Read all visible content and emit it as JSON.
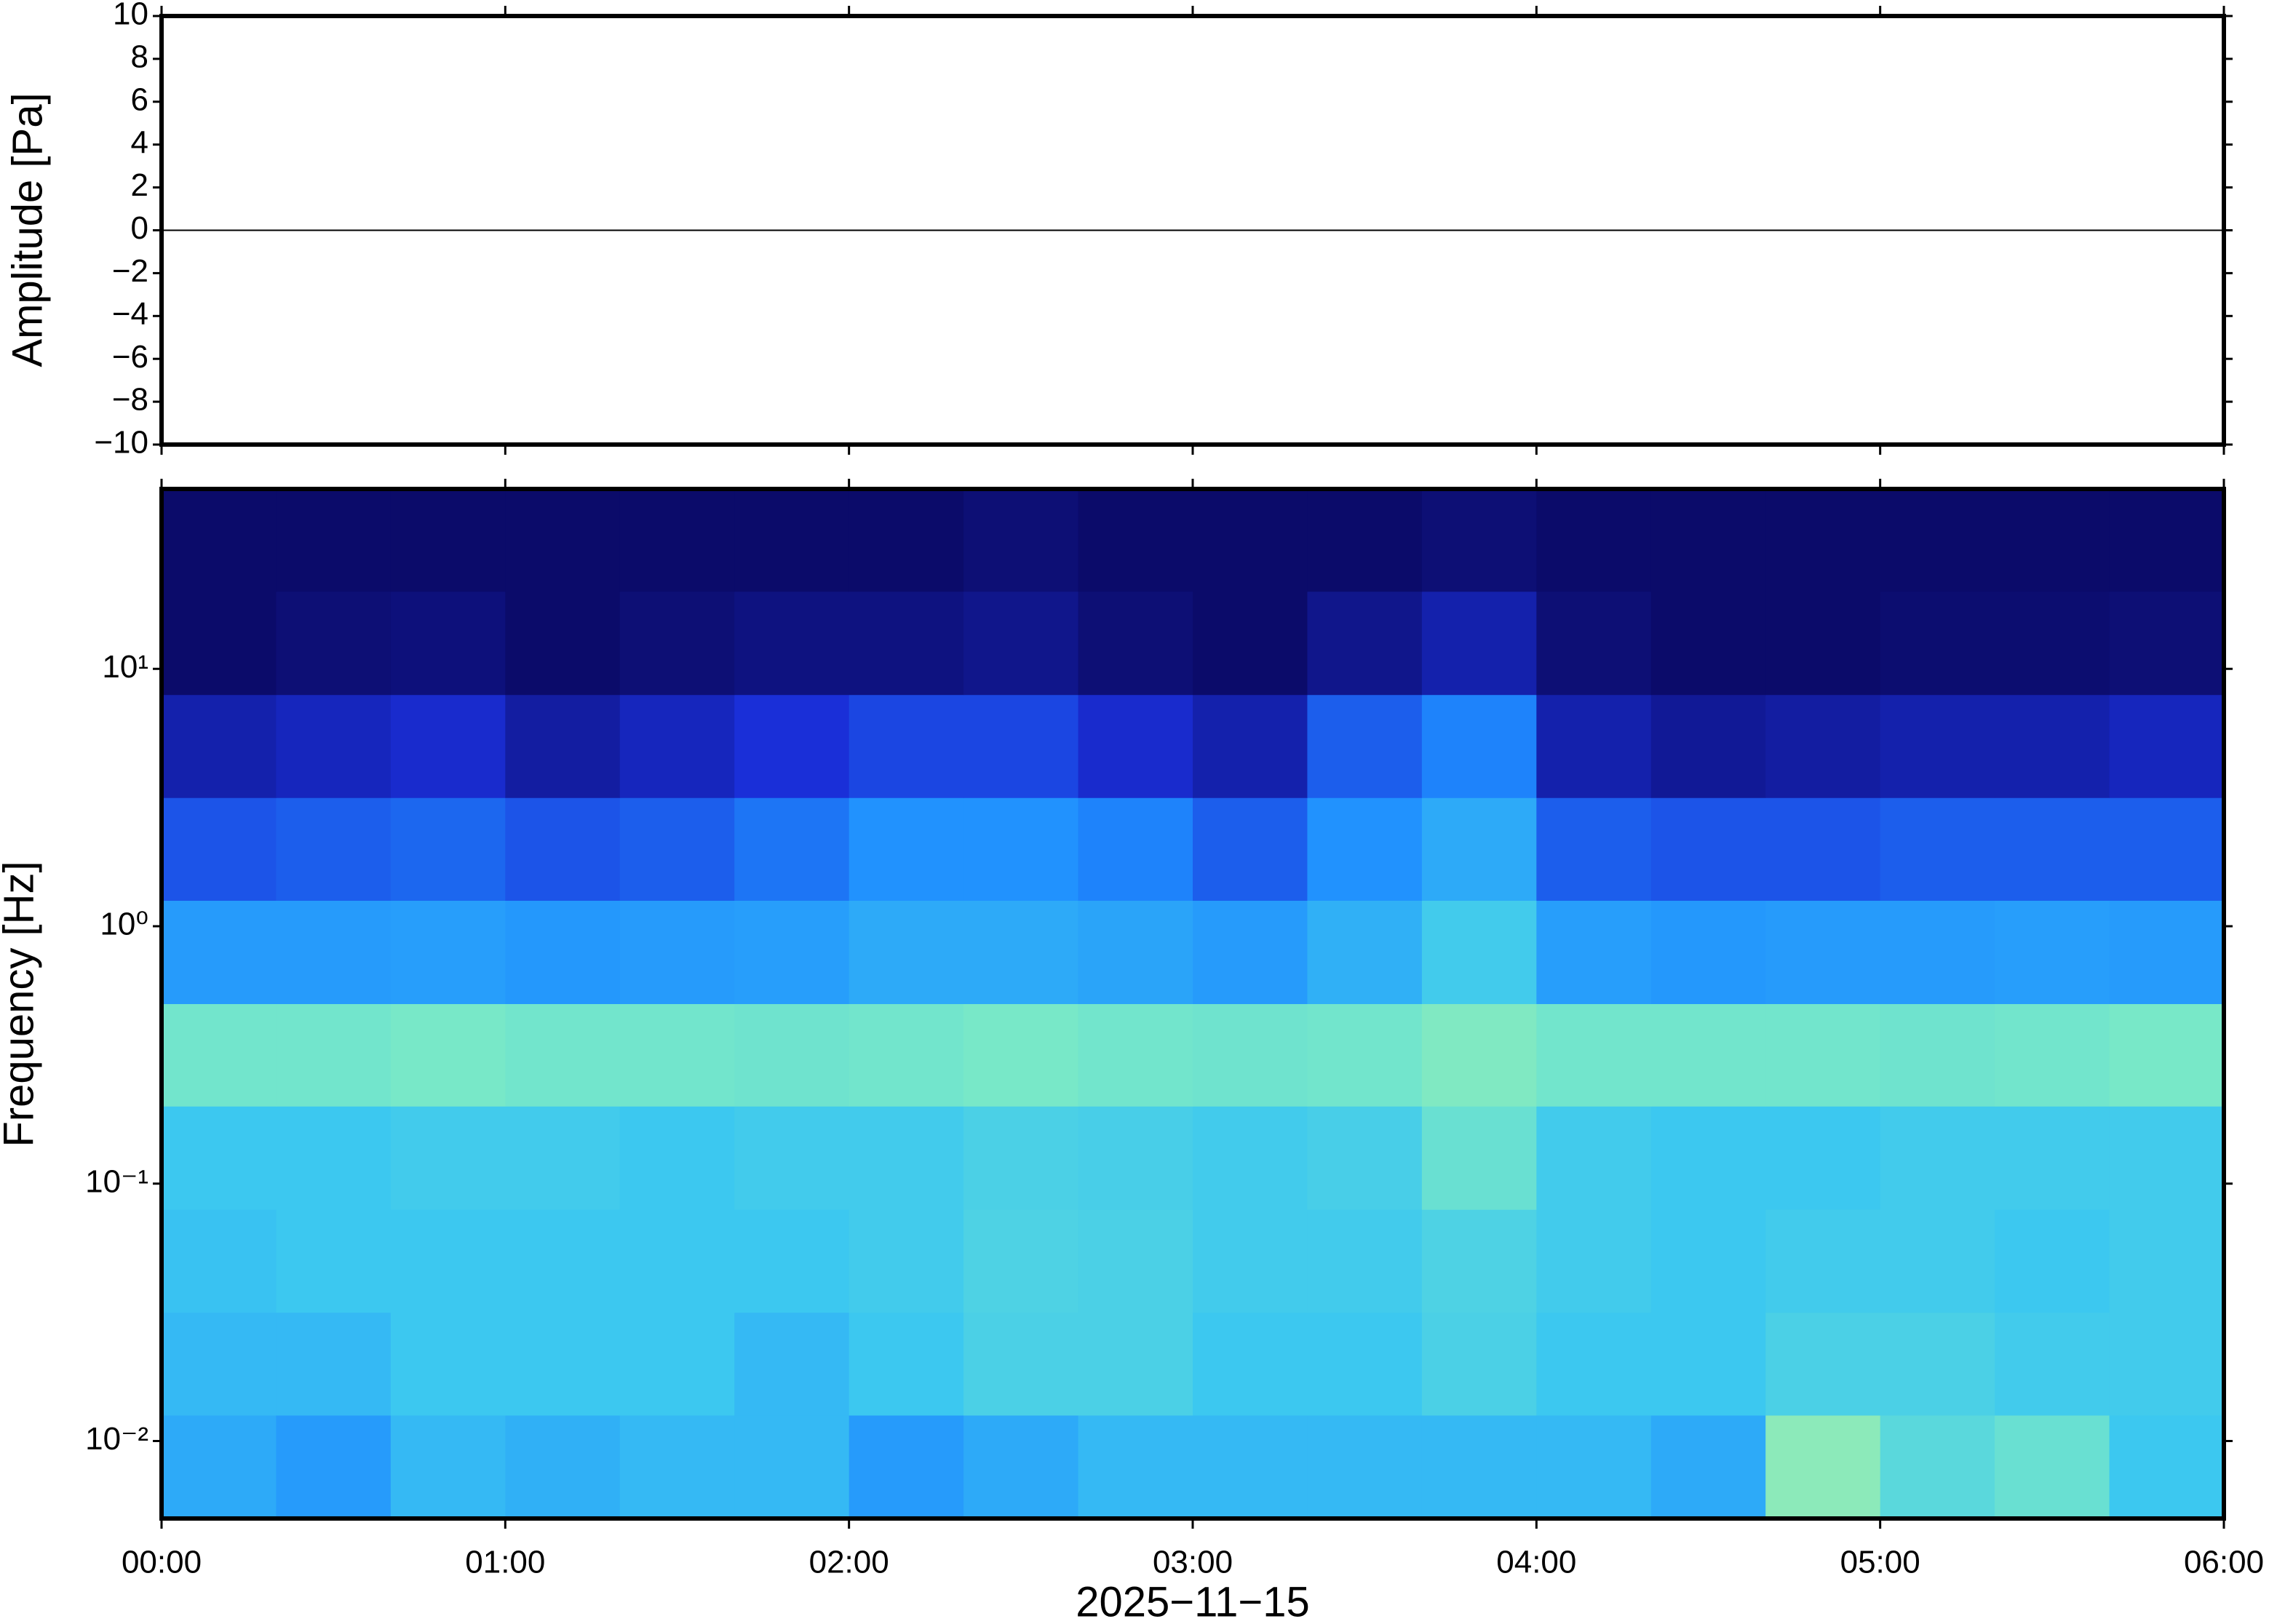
{
  "chart_data": [
    {
      "type": "line",
      "ylabel": "Amplitude [Pa]",
      "x": [
        "00:00",
        "06:00"
      ],
      "series": [
        {
          "name": "Amplitude",
          "color": "#000000",
          "values": [
            0,
            0
          ]
        }
      ],
      "xlim": [
        "00:00",
        "06:00"
      ],
      "ylim": [
        -10,
        10
      ],
      "yticks": [
        {
          "value": -10,
          "label": "−10"
        },
        {
          "value": -8,
          "label": "−8"
        },
        {
          "value": -6,
          "label": "−6"
        },
        {
          "value": -4,
          "label": "−4"
        },
        {
          "value": -2,
          "label": "−2"
        },
        0,
        2,
        4,
        6,
        8,
        10
      ]
    },
    {
      "type": "spectrogram",
      "ylabel": "Frequency [Hz]",
      "xlabel": "2025−11−15",
      "log_y": true,
      "xlim": [
        "00:00",
        "06:00"
      ],
      "ylim": [
        0.005,
        50
      ],
      "xticks": [
        "00:00",
        "01:00",
        "02:00",
        "03:00",
        "04:00",
        "05:00",
        "06:00"
      ],
      "yticks": [
        {
          "value": 0.01,
          "label": "10⁻²"
        },
        {
          "value": 0.1,
          "label": "10⁻¹"
        },
        {
          "value": 1,
          "label": "10⁰"
        },
        {
          "value": 10,
          "label": "10¹"
        }
      ],
      "xbins": [
        "00:00",
        "00:20",
        "00:40",
        "01:00",
        "01:20",
        "01:40",
        "02:00",
        "02:20",
        "02:40",
        "03:00",
        "03:20",
        "03:40",
        "04:00",
        "04:20",
        "04:40",
        "05:00",
        "05:20",
        "05:40",
        "06:00"
      ],
      "ybins": [
        0.005,
        0.0126,
        0.0316,
        0.0794,
        0.2,
        0.5,
        1.26,
        3.16,
        7.94,
        20,
        50
      ],
      "zlim": [
        0,
        1
      ],
      "colormap": [
        "#0b0b6a",
        "#1a2fd8",
        "#1e8cff",
        "#3cc8f0",
        "#78e8c8",
        "#c8f090"
      ],
      "z": [
        [
          0.5,
          0.45,
          0.55,
          0.52,
          0.55,
          0.55,
          0.45,
          0.5,
          0.55,
          0.55,
          0.55,
          0.55,
          0.55,
          0.5,
          0.85,
          0.7,
          0.75,
          0.6
        ],
        [
          0.55,
          0.55,
          0.6,
          0.6,
          0.6,
          0.55,
          0.6,
          0.65,
          0.65,
          0.6,
          0.6,
          0.65,
          0.6,
          0.6,
          0.65,
          0.65,
          0.62,
          0.62
        ],
        [
          0.58,
          0.6,
          0.6,
          0.6,
          0.6,
          0.6,
          0.62,
          0.66,
          0.65,
          0.62,
          0.62,
          0.66,
          0.62,
          0.6,
          0.62,
          0.62,
          0.6,
          0.62
        ],
        [
          0.6,
          0.6,
          0.62,
          0.62,
          0.6,
          0.62,
          0.62,
          0.65,
          0.64,
          0.62,
          0.64,
          0.75,
          0.62,
          0.6,
          0.6,
          0.62,
          0.62,
          0.62
        ],
        [
          0.78,
          0.78,
          0.8,
          0.78,
          0.78,
          0.77,
          0.78,
          0.8,
          0.78,
          0.77,
          0.78,
          0.82,
          0.78,
          0.78,
          0.78,
          0.77,
          0.78,
          0.8
        ],
        [
          0.45,
          0.45,
          0.46,
          0.44,
          0.45,
          0.46,
          0.5,
          0.5,
          0.48,
          0.45,
          0.52,
          0.62,
          0.46,
          0.44,
          0.45,
          0.45,
          0.46,
          0.45
        ],
        [
          0.28,
          0.3,
          0.32,
          0.28,
          0.3,
          0.35,
          0.42,
          0.42,
          0.38,
          0.3,
          0.42,
          0.5,
          0.3,
          0.28,
          0.28,
          0.3,
          0.3,
          0.3
        ],
        [
          0.12,
          0.15,
          0.18,
          0.1,
          0.15,
          0.2,
          0.25,
          0.25,
          0.18,
          0.12,
          0.3,
          0.38,
          0.12,
          0.08,
          0.1,
          0.12,
          0.12,
          0.15
        ],
        [
          0.0,
          0.02,
          0.03,
          0.0,
          0.02,
          0.04,
          0.04,
          0.06,
          0.02,
          0.0,
          0.06,
          0.12,
          0.02,
          0.0,
          0.0,
          0.01,
          0.01,
          0.02
        ],
        [
          0,
          0,
          0,
          0,
          0,
          0,
          0,
          0.02,
          0,
          0,
          0,
          0.02,
          0,
          0,
          0,
          0,
          0,
          0
        ]
      ]
    }
  ]
}
